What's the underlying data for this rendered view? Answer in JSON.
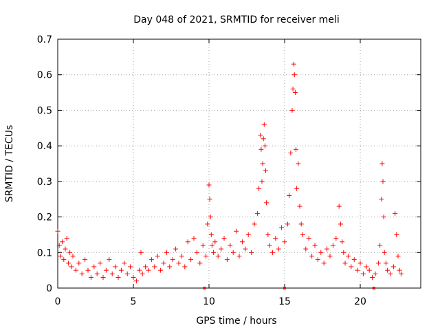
{
  "chart_data": {
    "type": "scatter",
    "title": "Day 048 of 2021, SRMTID for receiver meli",
    "xlabel": "GPS time / hours",
    "ylabel": "SRMTID / TECUs",
    "xlim": [
      0,
      24
    ],
    "ylim": [
      0,
      0.7
    ],
    "xticks": [
      0,
      5,
      10,
      15,
      20
    ],
    "yticks": [
      0,
      0.1,
      0.2,
      0.3,
      0.4,
      0.5,
      0.6,
      0.7
    ],
    "grid": true,
    "marker": "+",
    "color": "#ff0000",
    "baseline_markers_x": [
      9.7,
      15.0,
      20.9
    ],
    "series": [
      {
        "name": "SRMTID",
        "x": [
          0.0,
          0.1,
          0.2,
          0.3,
          0.4,
          0.5,
          0.6,
          0.7,
          0.8,
          0.9,
          1.0,
          1.2,
          1.4,
          1.6,
          1.8,
          2.0,
          2.2,
          2.4,
          2.6,
          2.8,
          3.0,
          3.2,
          3.4,
          3.6,
          3.8,
          4.0,
          4.2,
          4.4,
          4.6,
          4.8,
          5.0,
          5.2,
          5.4,
          5.5,
          5.6,
          5.8,
          6.0,
          6.2,
          6.4,
          6.6,
          6.8,
          7.0,
          7.2,
          7.4,
          7.6,
          7.8,
          8.0,
          8.2,
          8.4,
          8.6,
          8.8,
          9.0,
          9.2,
          9.4,
          9.6,
          9.8,
          9.9,
          10.0,
          10.05,
          10.1,
          10.15,
          10.2,
          10.3,
          10.4,
          10.6,
          10.8,
          11.0,
          11.2,
          11.4,
          11.6,
          11.8,
          12.0,
          12.2,
          12.4,
          12.6,
          12.8,
          13.0,
          13.2,
          13.3,
          13.4,
          13.45,
          13.5,
          13.55,
          13.6,
          13.65,
          13.7,
          13.75,
          13.8,
          13.9,
          14.0,
          14.2,
          14.4,
          14.6,
          14.8,
          15.0,
          15.2,
          15.3,
          15.4,
          15.5,
          15.55,
          15.6,
          15.65,
          15.7,
          15.75,
          15.8,
          15.9,
          16.0,
          16.1,
          16.2,
          16.4,
          16.6,
          16.8,
          17.0,
          17.2,
          17.4,
          17.6,
          17.8,
          18.0,
          18.2,
          18.4,
          18.6,
          18.7,
          18.8,
          18.9,
          19.0,
          19.2,
          19.4,
          19.6,
          19.8,
          20.0,
          20.2,
          20.4,
          20.6,
          20.8,
          21.0,
          21.2,
          21.3,
          21.4,
          21.45,
          21.5,
          21.55,
          21.6,
          21.7,
          21.8,
          22.0,
          22.2,
          22.3,
          22.4,
          22.5,
          22.6,
          22.7
        ],
        "y": [
          0.16,
          0.12,
          0.09,
          0.13,
          0.08,
          0.11,
          0.14,
          0.07,
          0.1,
          0.06,
          0.09,
          0.05,
          0.07,
          0.04,
          0.08,
          0.05,
          0.03,
          0.06,
          0.04,
          0.07,
          0.03,
          0.05,
          0.08,
          0.04,
          0.06,
          0.03,
          0.05,
          0.07,
          0.04,
          0.06,
          0.03,
          0.02,
          0.05,
          0.1,
          0.04,
          0.06,
          0.05,
          0.08,
          0.06,
          0.09,
          0.05,
          0.07,
          0.1,
          0.06,
          0.08,
          0.11,
          0.07,
          0.09,
          0.06,
          0.13,
          0.08,
          0.14,
          0.1,
          0.07,
          0.12,
          0.09,
          0.18,
          0.29,
          0.25,
          0.2,
          0.15,
          0.12,
          0.1,
          0.13,
          0.09,
          0.11,
          0.14,
          0.08,
          0.12,
          0.1,
          0.16,
          0.09,
          0.13,
          0.11,
          0.15,
          0.1,
          0.18,
          0.21,
          0.28,
          0.43,
          0.39,
          0.3,
          0.35,
          0.42,
          0.46,
          0.4,
          0.33,
          0.24,
          0.15,
          0.12,
          0.1,
          0.14,
          0.11,
          0.17,
          0.13,
          0.18,
          0.26,
          0.38,
          0.5,
          0.56,
          0.63,
          0.6,
          0.55,
          0.39,
          0.28,
          0.35,
          0.23,
          0.18,
          0.15,
          0.11,
          0.14,
          0.09,
          0.12,
          0.08,
          0.1,
          0.07,
          0.11,
          0.09,
          0.12,
          0.14,
          0.23,
          0.18,
          0.13,
          0.1,
          0.07,
          0.09,
          0.06,
          0.08,
          0.05,
          0.07,
          0.04,
          0.06,
          0.05,
          0.03,
          0.04,
          0.07,
          0.12,
          0.25,
          0.35,
          0.3,
          0.2,
          0.1,
          0.07,
          0.05,
          0.04,
          0.06,
          0.21,
          0.15,
          0.09,
          0.05,
          0.04
        ]
      }
    ]
  }
}
